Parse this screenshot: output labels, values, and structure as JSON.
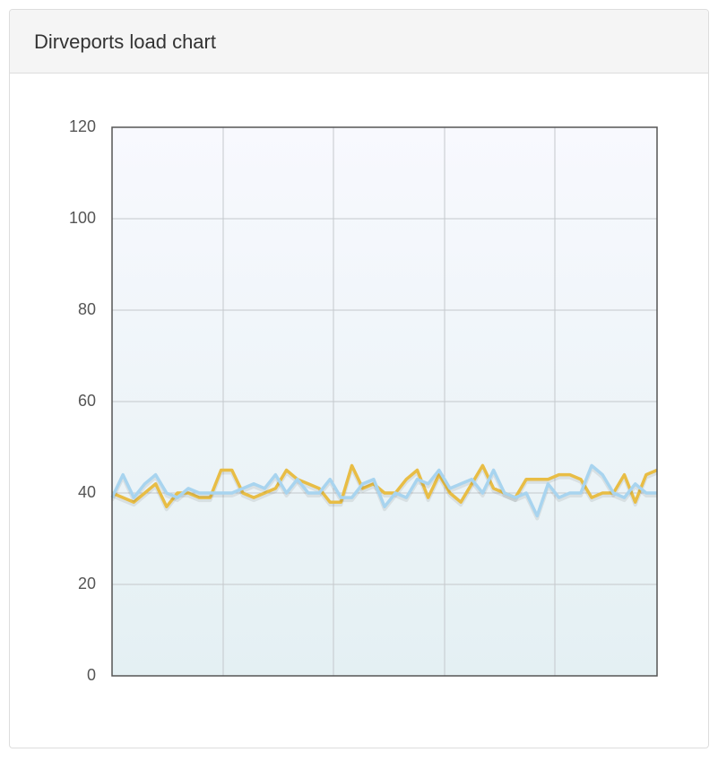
{
  "chart_data": {
    "type": "line",
    "title": "Dirveports load chart",
    "categories": [
      null,
      null,
      null,
      null,
      null,
      null,
      null,
      null,
      null,
      null,
      null,
      null,
      null,
      null,
      null,
      null,
      null,
      null,
      null,
      null,
      null,
      null,
      null,
      null,
      null,
      null,
      null,
      null,
      null,
      null,
      null,
      null,
      null,
      null,
      null,
      null,
      null,
      null,
      null,
      null,
      null,
      null,
      null,
      null,
      null,
      null,
      null,
      null,
      null,
      null,
      null
    ],
    "series": [
      {
        "color": "#e8bd45",
        "values": [
          40,
          39,
          38,
          40,
          42,
          37,
          40,
          40,
          39,
          39,
          45,
          45,
          40,
          39,
          40,
          41,
          45,
          43,
          42,
          41,
          38,
          38,
          46,
          41,
          42,
          40,
          40,
          43,
          45,
          39,
          44,
          40,
          38,
          42,
          46,
          41,
          40,
          39,
          43,
          43,
          43,
          44,
          44,
          43,
          39,
          40,
          40,
          44,
          38,
          44,
          45
        ]
      },
      {
        "color": "#a8d4ef",
        "values": [
          39,
          44,
          39,
          42,
          44,
          40,
          39,
          41,
          40,
          40,
          40,
          40,
          41,
          42,
          41,
          44,
          40,
          43,
          40,
          40,
          43,
          39,
          39,
          42,
          43,
          37,
          40,
          39,
          43,
          42,
          45,
          41,
          42,
          43,
          40,
          45,
          40,
          39,
          40,
          35,
          42,
          39,
          40,
          40,
          46,
          44,
          40,
          39,
          42,
          40,
          40
        ]
      }
    ],
    "ylim": [
      0,
      120
    ],
    "yticks": [
      0,
      20,
      40,
      60,
      80,
      100,
      120
    ],
    "grid": true
  }
}
